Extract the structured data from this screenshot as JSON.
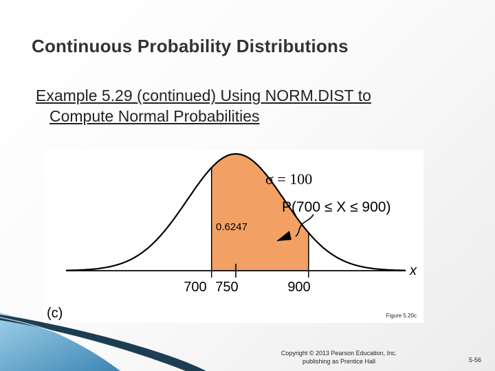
{
  "slide": {
    "title": "Continuous Probability Distributions",
    "subtitle_line1": "Example 5.29 (continued)  Using NORM.DIST to",
    "subtitle_line2": "Compute Normal Probabilities",
    "copyright_line1": "Copyright © 2013 Pearson Education, Inc.",
    "copyright_line2": "publishing as Prentice Hall",
    "slide_number": "5-56"
  },
  "figure": {
    "panel_label": "(c)",
    "caption": "Figure 5.20c",
    "mean": 750,
    "sigma_label": "σ = 100",
    "probability_label": "P(700 ≤ X ≤ 900)",
    "shaded_value": "0.6247",
    "axis_label": "x",
    "ticks": [
      "700",
      "750",
      "900"
    ],
    "shaded_from": 700,
    "shaded_to": 900,
    "fill_color": "#f2a064",
    "curve_color": "#000000"
  },
  "colors": {
    "corner_dark": "#1d3d52",
    "corner_light": "#6fb3d8"
  }
}
